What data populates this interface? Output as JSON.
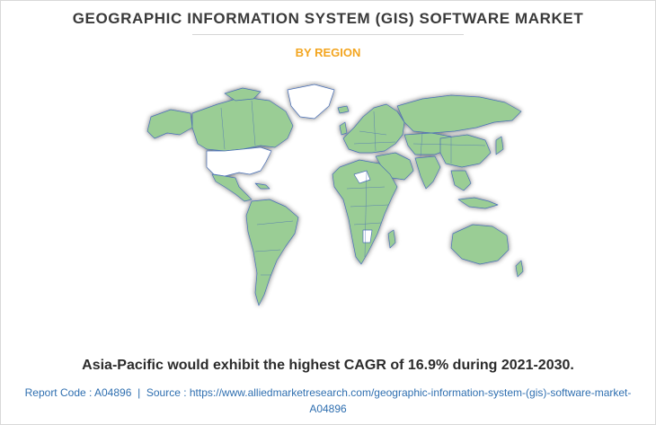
{
  "header": {
    "title": "GEOGRAPHIC INFORMATION SYSTEM (GIS) SOFTWARE MARKET",
    "subtitle": "BY REGION"
  },
  "map": {
    "highlight_color": "#ffffff",
    "land_color": "#9acd95",
    "border_color": "#4a6fb5",
    "highlighted_regions": [
      "United States",
      "Greenland",
      "Parts of Africa"
    ]
  },
  "footer": {
    "headline": "Asia-Pacific would exhibit the highest CAGR of 16.9% during 2021-2030.",
    "report_code_label": "Report Code : A04896",
    "separator": "|",
    "source_label": "Source : https://www.alliedmarketresearch.com/geographic-information-system-(gis)-software-market-A04896"
  }
}
